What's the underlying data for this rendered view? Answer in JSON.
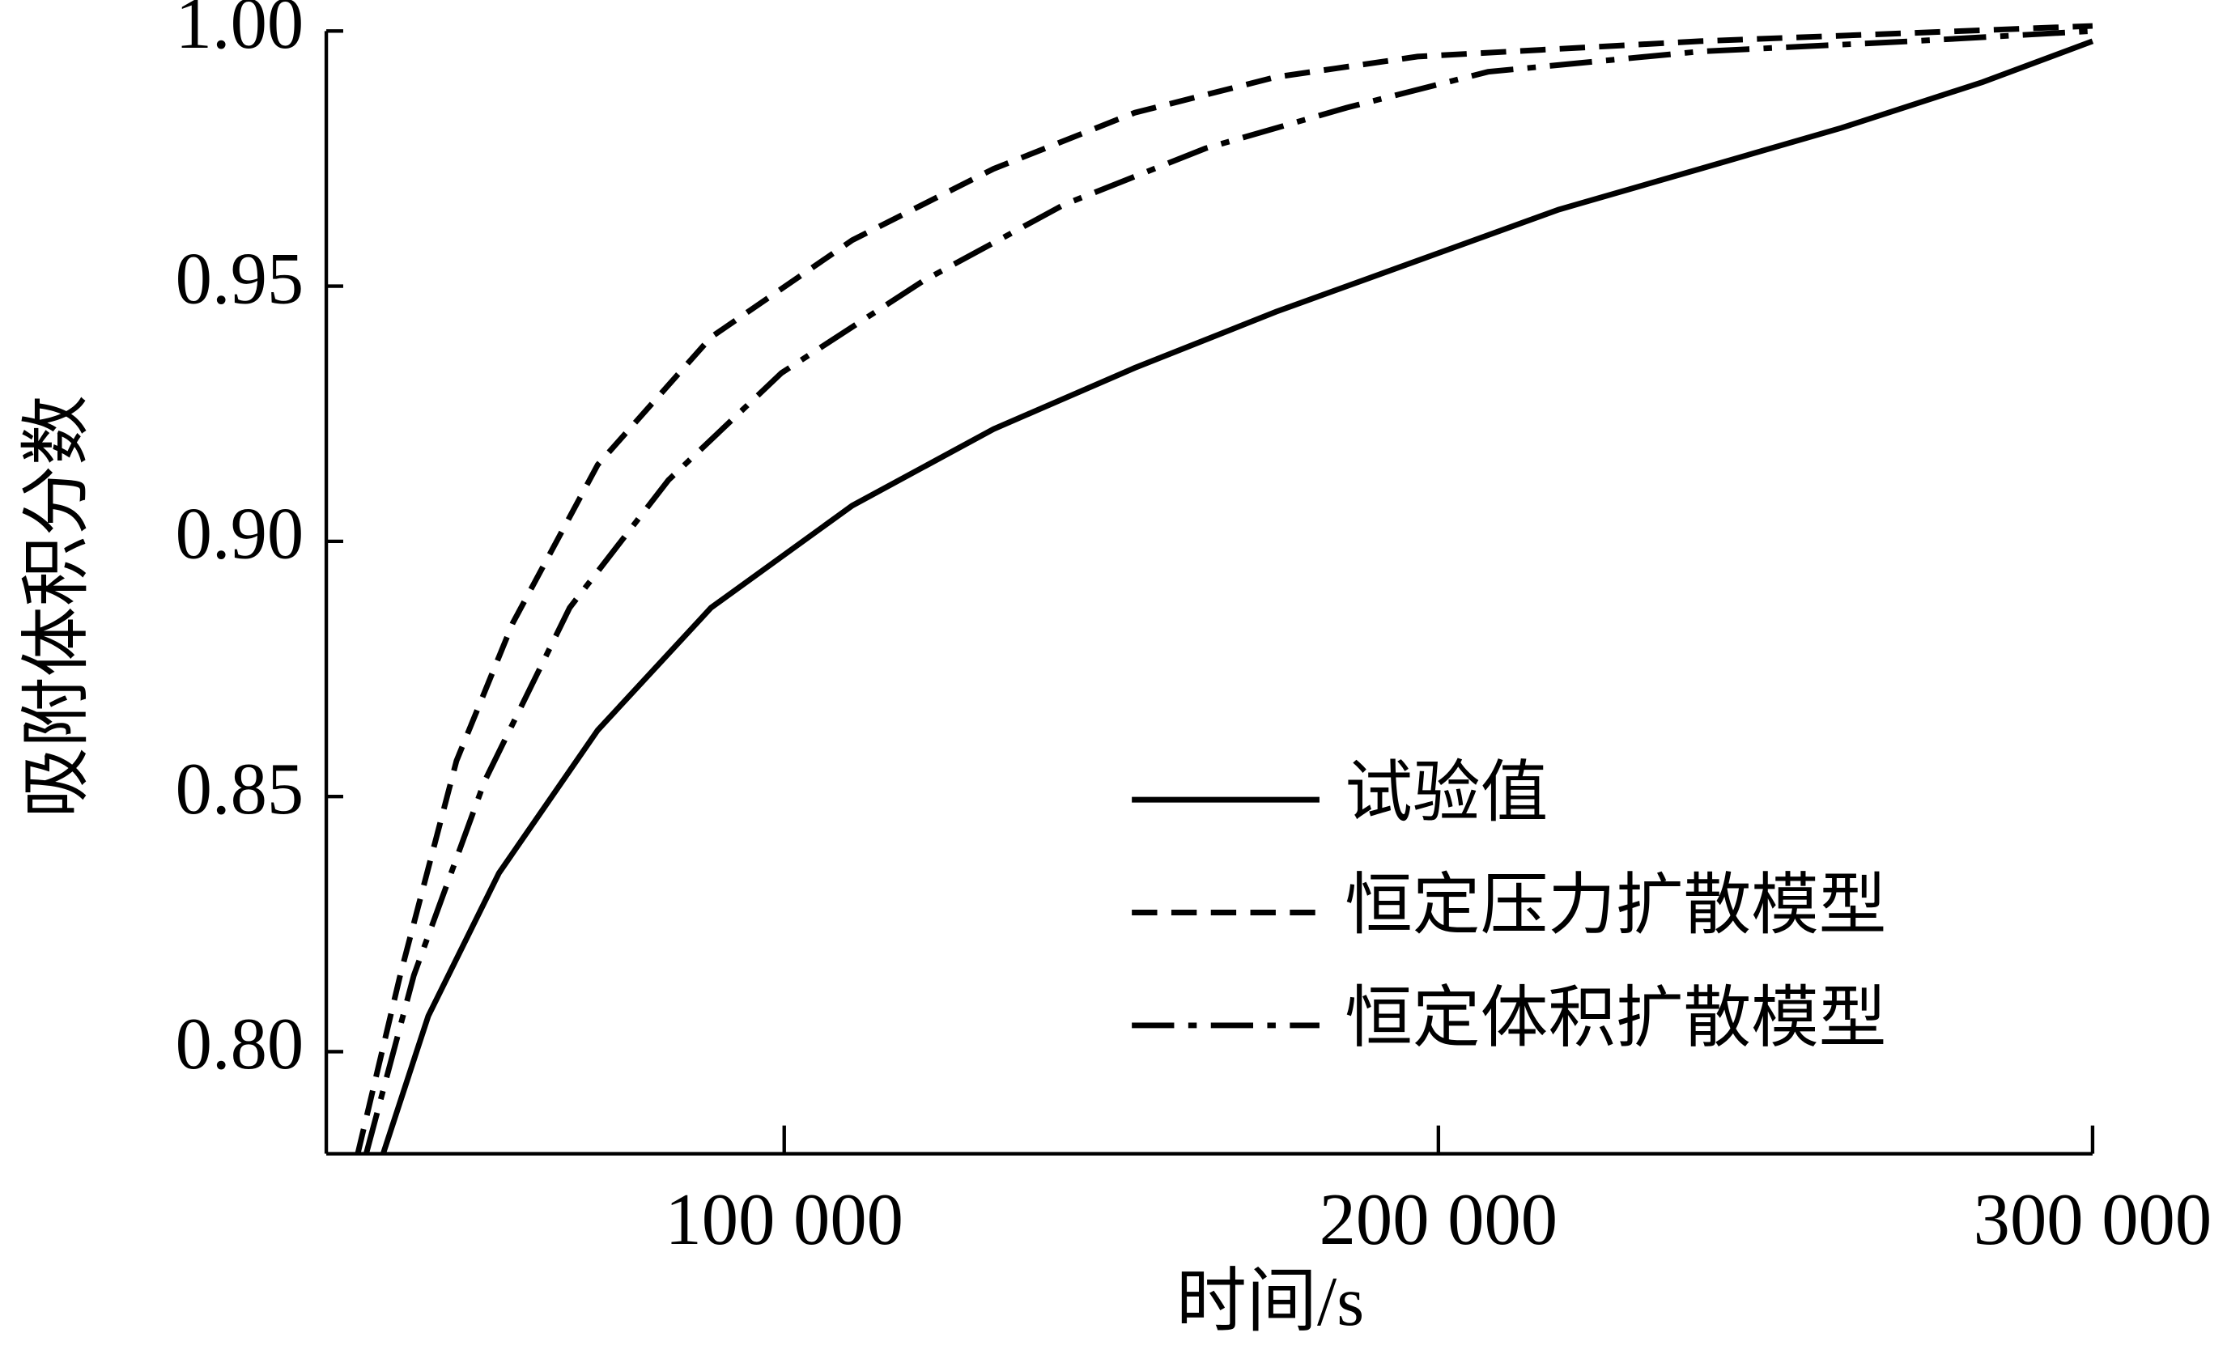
{
  "chart_data": {
    "type": "line",
    "x_label": "时间/s",
    "y_label": "吸附体积分数",
    "xlim": [
      30000,
      300000
    ],
    "ylim": [
      0.78,
      1.0
    ],
    "xticks": [
      {
        "value": 100000,
        "label": "100 000"
      },
      {
        "value": 200000,
        "label": "200 000"
      },
      {
        "value": 300000,
        "label": "300 000"
      }
    ],
    "yticks": [
      {
        "value": 0.8,
        "label": "0.80"
      },
      0.85,
      {
        "value": 0.9,
        "label": "0.90"
      },
      0.95,
      {
        "value": 1.0,
        "label": "1.00"
      }
    ],
    "legend": "lower right",
    "series": [
      {
        "name": "试验值",
        "color": "#000000",
        "line_style": "solid",
        "x": [
          38700,
          45600,
          56400,
          71500,
          88800,
          110400,
          132000,
          153600,
          175200,
          196800,
          218400,
          240000,
          261600,
          283200,
          300000
        ],
        "values": [
          0.78,
          0.807,
          0.835,
          0.863,
          0.887,
          0.907,
          0.922,
          0.934,
          0.945,
          0.955,
          0.965,
          0.973,
          0.981,
          0.99,
          0.998
        ]
      },
      {
        "name": "恒定压力扩散模型",
        "color": "#000000",
        "line_style": "dashed",
        "x": [
          34800,
          41300,
          49900,
          58500,
          71500,
          88800,
          110400,
          132000,
          153600,
          175200,
          196800,
          240000,
          300000
        ],
        "values": [
          0.78,
          0.815,
          0.857,
          0.884,
          0.915,
          0.94,
          0.959,
          0.973,
          0.984,
          0.991,
          0.995,
          0.998,
          1.001
        ]
      },
      {
        "name": "恒定体积扩散模型",
        "color": "#000000",
        "line_style": "dashdot",
        "x": [
          36100,
          43400,
          54200,
          67200,
          82300,
          99600,
          121200,
          142800,
          164400,
          186000,
          207600,
          240000,
          272400,
          300000
        ],
        "values": [
          0.78,
          0.815,
          0.853,
          0.887,
          0.912,
          0.933,
          0.951,
          0.966,
          0.977,
          0.985,
          0.992,
          0.996,
          0.998,
          1.0
        ]
      }
    ]
  }
}
